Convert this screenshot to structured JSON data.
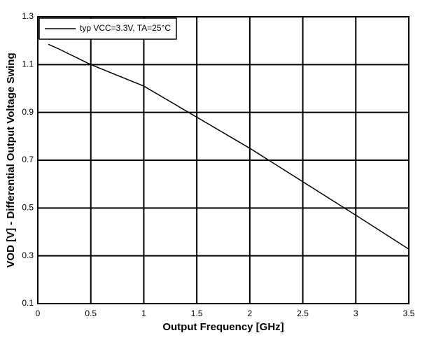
{
  "chart_data": {
    "type": "line",
    "x_label": "Output Frequency [GHz]",
    "y_label": "VOD [V] - Differential Output Voltage Swing",
    "x": [
      0.1,
      0.2,
      0.5,
      1,
      1.5,
      2,
      2.5,
      3,
      3.5
    ],
    "series": [
      {
        "name": "typ VCC=3.3V, TA=25°C",
        "color": "#000000",
        "values": [
          1.185,
          1.165,
          1.1,
          1.01,
          0.88,
          0.75,
          0.61,
          0.47,
          0.328
        ]
      }
    ],
    "xlim": [
      0,
      3.5
    ],
    "xticks": [
      0,
      0.5,
      1,
      1.5,
      2,
      2.5,
      3,
      3.5
    ],
    "ylim": [
      0.1,
      1.3
    ],
    "yticks": [
      0.1,
      0.3,
      0.5,
      0.7,
      0.9,
      1.1,
      1.3
    ],
    "grid": true,
    "legend": "upper left"
  }
}
